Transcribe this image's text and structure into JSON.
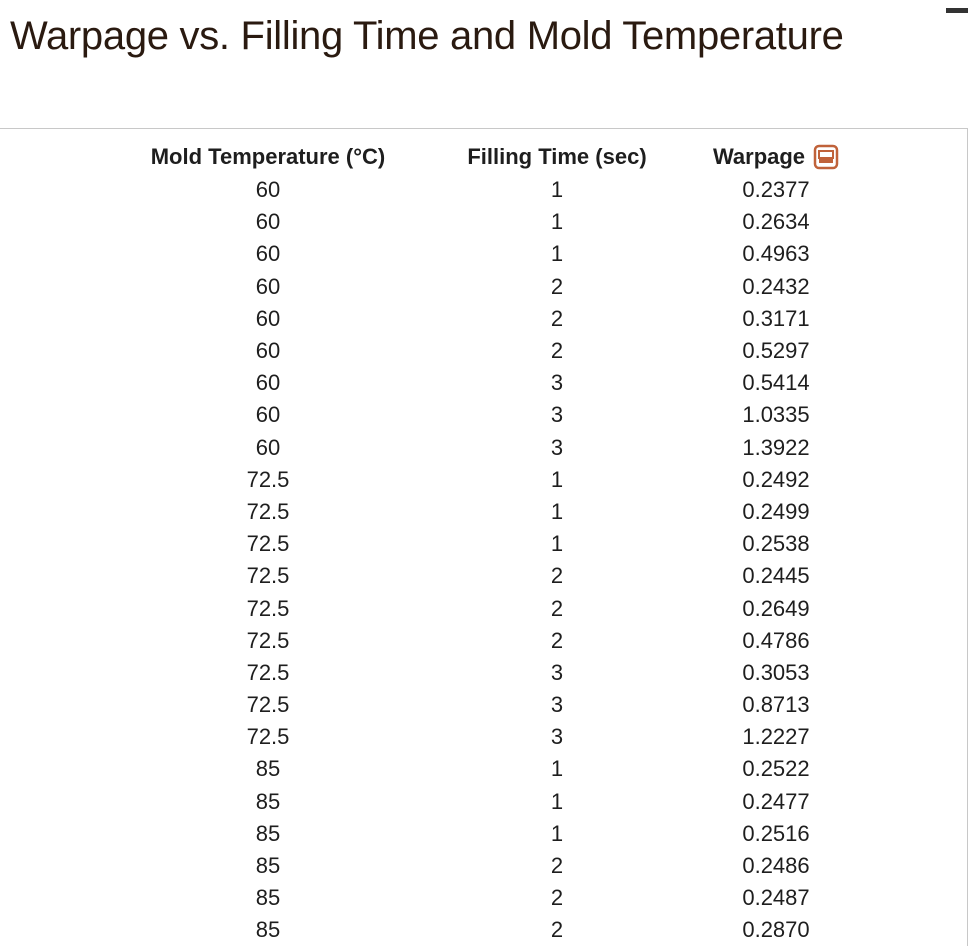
{
  "title": "Warpage vs. Filling Time and Mold Temperature",
  "table": {
    "headers": {
      "mold": "Mold Temperature (°C)",
      "fill": "Filling Time (sec)",
      "warpage": "Warpage"
    },
    "rows": [
      {
        "mold": "60",
        "fill": "1",
        "warpage": "0.2377"
      },
      {
        "mold": "60",
        "fill": "1",
        "warpage": "0.2634"
      },
      {
        "mold": "60",
        "fill": "1",
        "warpage": "0.4963"
      },
      {
        "mold": "60",
        "fill": "2",
        "warpage": "0.2432"
      },
      {
        "mold": "60",
        "fill": "2",
        "warpage": "0.3171"
      },
      {
        "mold": "60",
        "fill": "2",
        "warpage": "0.5297"
      },
      {
        "mold": "60",
        "fill": "3",
        "warpage": "0.5414"
      },
      {
        "mold": "60",
        "fill": "3",
        "warpage": "1.0335"
      },
      {
        "mold": "60",
        "fill": "3",
        "warpage": "1.3922"
      },
      {
        "mold": "72.5",
        "fill": "1",
        "warpage": "0.2492"
      },
      {
        "mold": "72.5",
        "fill": "1",
        "warpage": "0.2499"
      },
      {
        "mold": "72.5",
        "fill": "1",
        "warpage": "0.2538"
      },
      {
        "mold": "72.5",
        "fill": "2",
        "warpage": "0.2445"
      },
      {
        "mold": "72.5",
        "fill": "2",
        "warpage": "0.2649"
      },
      {
        "mold": "72.5",
        "fill": "2",
        "warpage": "0.4786"
      },
      {
        "mold": "72.5",
        "fill": "3",
        "warpage": "0.3053"
      },
      {
        "mold": "72.5",
        "fill": "3",
        "warpage": "0.8713"
      },
      {
        "mold": "72.5",
        "fill": "3",
        "warpage": "1.2227"
      },
      {
        "mold": "85",
        "fill": "1",
        "warpage": "0.2522"
      },
      {
        "mold": "85",
        "fill": "1",
        "warpage": "0.2477"
      },
      {
        "mold": "85",
        "fill": "1",
        "warpage": "0.2516"
      },
      {
        "mold": "85",
        "fill": "2",
        "warpage": "0.2486"
      },
      {
        "mold": "85",
        "fill": "2",
        "warpage": "0.2487"
      },
      {
        "mold": "85",
        "fill": "2",
        "warpage": "0.2870"
      }
    ]
  },
  "icons": {
    "copy": "copy-table-icon",
    "accent_color": "#c0623a"
  }
}
